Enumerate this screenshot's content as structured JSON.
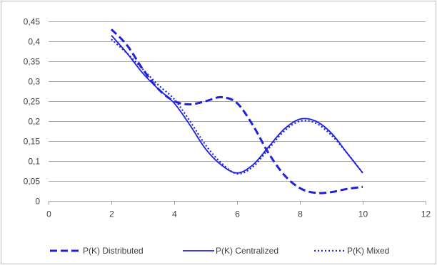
{
  "chart_data": {
    "type": "line",
    "title": "",
    "xlabel": "",
    "ylabel": "",
    "xlim": [
      0,
      12
    ],
    "ylim": [
      0,
      0.45
    ],
    "x_ticks": [
      0,
      2,
      4,
      6,
      8,
      10,
      12
    ],
    "x_tick_labels": [
      "0",
      "2",
      "4",
      "6",
      "8",
      "10",
      "12"
    ],
    "y_ticks": [
      0,
      0.05,
      0.1,
      0.15,
      0.2,
      0.25,
      0.3,
      0.35,
      0.4,
      0.45
    ],
    "y_tick_labels": [
      "0",
      "0,05",
      "0,1",
      "0,15",
      "0,2",
      "0,25",
      "0,3",
      "0,35",
      "0,4",
      "0,45"
    ],
    "grid": "horizontal",
    "legend_position": "bottom",
    "series": [
      {
        "name": "P(K) Distributed",
        "style": "dashed",
        "color": "#1F1FE0",
        "x": [
          2,
          2.5,
          3,
          3.5,
          4,
          4.5,
          5,
          5.5,
          6,
          6.5,
          7,
          7.5,
          8,
          8.5,
          9,
          9.5,
          10
        ],
        "y": [
          0.43,
          0.39,
          0.33,
          0.28,
          0.25,
          0.242,
          0.25,
          0.26,
          0.245,
          0.19,
          0.12,
          0.065,
          0.032,
          0.02,
          0.022,
          0.03,
          0.035
        ]
      },
      {
        "name": "P(K) Centralized",
        "style": "solid",
        "color": "#1F1FE0",
        "x": [
          2,
          2.5,
          3,
          3.5,
          4,
          4.5,
          5,
          5.5,
          6,
          6.5,
          7,
          7.5,
          8,
          8.5,
          9,
          9.5,
          10
        ],
        "y": [
          0.415,
          0.37,
          0.32,
          0.28,
          0.245,
          0.19,
          0.13,
          0.09,
          0.07,
          0.09,
          0.135,
          0.18,
          0.205,
          0.2,
          0.17,
          0.12,
          0.07
        ]
      },
      {
        "name": "P(K) Mixed",
        "style": "dotted",
        "color": "#1F1FE0",
        "x": [
          2,
          2.5,
          3,
          3.5,
          4,
          4.5,
          5,
          5.5,
          6,
          6.5,
          7,
          7.5,
          8,
          8.5,
          9,
          9.5,
          10
        ],
        "y": [
          0.405,
          0.37,
          0.33,
          0.29,
          0.255,
          0.2,
          0.14,
          0.095,
          0.068,
          0.085,
          0.13,
          0.175,
          0.2,
          0.195,
          0.165,
          0.12,
          0.07
        ]
      }
    ]
  }
}
